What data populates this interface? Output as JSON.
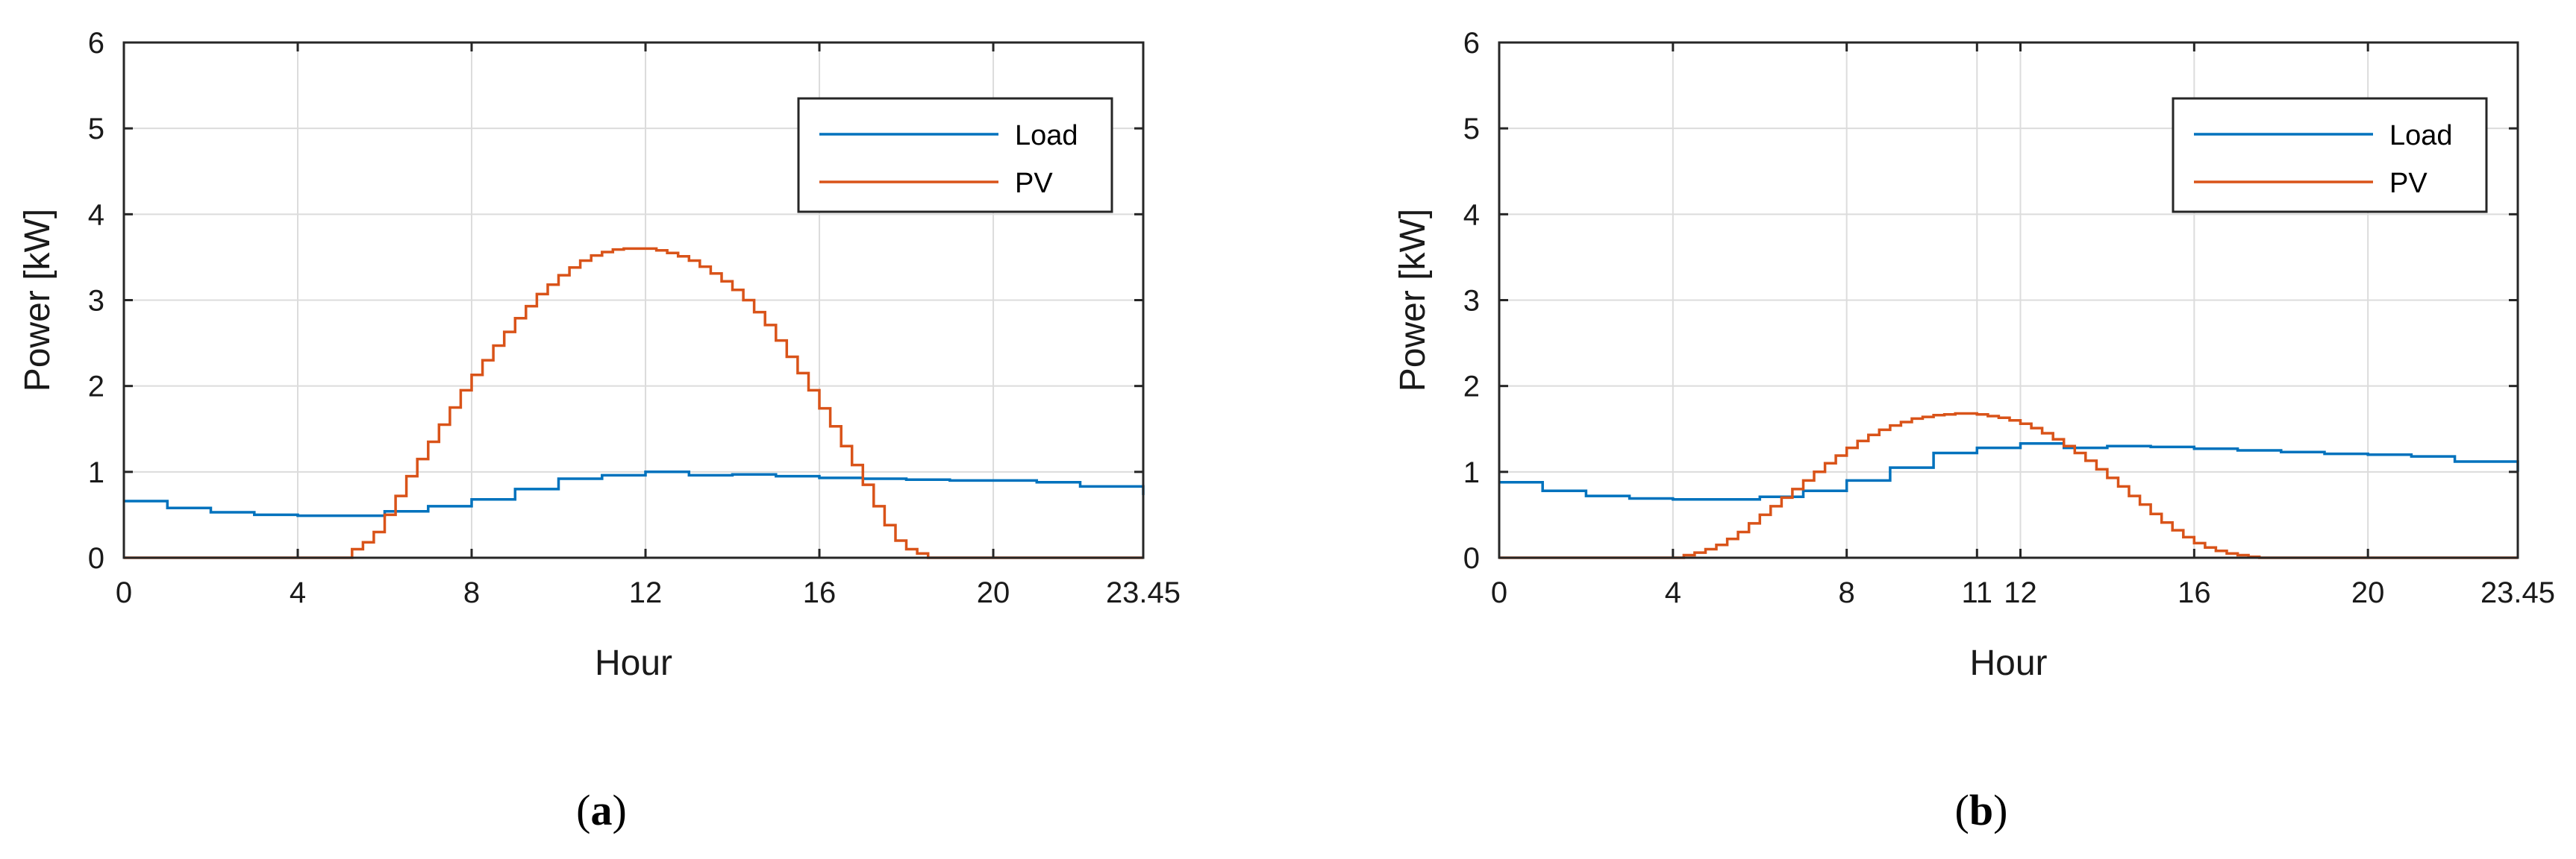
{
  "colors": {
    "load": "#0072BD",
    "pv": "#D95319",
    "grid": "#dcdcdc",
    "axis": "#262626"
  },
  "chart_data": [
    {
      "type": "line",
      "panel": "a",
      "caption": {
        "open": "(",
        "letter": "a",
        "close": ")"
      },
      "xlabel": "Hour",
      "ylabel": "Power [kW]",
      "xlim": [
        0,
        23.45
      ],
      "ylim": [
        0,
        6
      ],
      "xticks": [
        0,
        4,
        8,
        12,
        16,
        20,
        23.45
      ],
      "xtick_labels": [
        "0",
        "4",
        "8",
        "12",
        "16",
        "20",
        "23.45"
      ],
      "yticks": [
        0,
        1,
        2,
        3,
        4,
        5,
        6
      ],
      "ytick_labels": [
        "0",
        "1",
        "2",
        "3",
        "4",
        "5",
        "6"
      ],
      "grid": true,
      "legend": {
        "position": "top-right",
        "entries": [
          "Load",
          "PV"
        ]
      },
      "series": [
        {
          "name": "Load",
          "step": true,
          "x": [
            0,
            1,
            2,
            3,
            4,
            5,
            6,
            7,
            8,
            9,
            10,
            11,
            12,
            13,
            14,
            15,
            16,
            17,
            18,
            19,
            20,
            21,
            22,
            23.45
          ],
          "y": [
            0.66,
            0.58,
            0.53,
            0.5,
            0.49,
            0.49,
            0.54,
            0.6,
            0.68,
            0.8,
            0.92,
            0.96,
            1.0,
            0.96,
            0.97,
            0.95,
            0.93,
            0.92,
            0.91,
            0.9,
            0.9,
            0.88,
            0.83,
            0.73
          ]
        },
        {
          "name": "PV",
          "step": true,
          "x": [
            0,
            5.25,
            5.5,
            5.75,
            6,
            6.25,
            6.5,
            6.75,
            7,
            7.25,
            7.5,
            7.75,
            8,
            8.25,
            8.5,
            8.75,
            9,
            9.25,
            9.5,
            9.75,
            10,
            10.25,
            10.5,
            10.75,
            11,
            11.25,
            11.5,
            11.75,
            12,
            12.25,
            12.5,
            12.75,
            13,
            13.25,
            13.5,
            13.75,
            14,
            14.25,
            14.5,
            14.75,
            15,
            15.25,
            15.5,
            15.75,
            16,
            16.25,
            16.5,
            16.75,
            17,
            17.25,
            17.5,
            17.75,
            18,
            18.25,
            18.5,
            23.45
          ],
          "y": [
            0,
            0.1,
            0.18,
            0.3,
            0.5,
            0.72,
            0.95,
            1.15,
            1.35,
            1.55,
            1.75,
            1.95,
            2.13,
            2.3,
            2.47,
            2.63,
            2.79,
            2.93,
            3.07,
            3.18,
            3.29,
            3.38,
            3.46,
            3.52,
            3.56,
            3.59,
            3.6,
            3.6,
            3.6,
            3.58,
            3.55,
            3.51,
            3.46,
            3.39,
            3.31,
            3.22,
            3.12,
            3.0,
            2.86,
            2.71,
            2.53,
            2.34,
            2.15,
            1.95,
            1.74,
            1.53,
            1.3,
            1.08,
            0.85,
            0.6,
            0.38,
            0.2,
            0.1,
            0.05,
            0,
            0
          ]
        }
      ]
    },
    {
      "type": "line",
      "panel": "b",
      "caption": {
        "open": "(",
        "letter": "b",
        "close": ")"
      },
      "xlabel": "Hour",
      "ylabel": "Power [kW]",
      "xlim": [
        0,
        23.45
      ],
      "ylim": [
        0,
        6
      ],
      "xticks": [
        0,
        4,
        8,
        11,
        12,
        16,
        20,
        23.45
      ],
      "xtick_labels": [
        "0",
        "4",
        "8",
        "11",
        "12",
        "16",
        "20",
        "23.45"
      ],
      "yticks": [
        0,
        1,
        2,
        3,
        4,
        5,
        6
      ],
      "ytick_labels": [
        "0",
        "1",
        "2",
        "3",
        "4",
        "5",
        "6"
      ],
      "grid": true,
      "legend": {
        "position": "top-right",
        "entries": [
          "Load",
          "PV"
        ]
      },
      "series": [
        {
          "name": "Load",
          "step": true,
          "x": [
            0,
            1,
            2,
            3,
            4,
            5,
            6,
            7,
            8,
            9,
            10,
            11,
            12,
            13,
            14,
            15,
            16,
            17,
            18,
            19,
            20,
            21,
            22,
            23.45
          ],
          "y": [
            0.88,
            0.78,
            0.72,
            0.69,
            0.68,
            0.68,
            0.71,
            0.78,
            0.9,
            1.05,
            1.22,
            1.28,
            1.33,
            1.28,
            1.3,
            1.29,
            1.27,
            1.25,
            1.23,
            1.21,
            1.2,
            1.18,
            1.12,
            1.0
          ]
        },
        {
          "name": "PV",
          "step": true,
          "x": [
            0,
            4.25,
            4.5,
            4.75,
            5,
            5.25,
            5.5,
            5.75,
            6,
            6.25,
            6.5,
            6.75,
            7,
            7.25,
            7.5,
            7.75,
            8,
            8.25,
            8.5,
            8.75,
            9,
            9.25,
            9.5,
            9.75,
            10,
            10.25,
            10.5,
            10.75,
            11,
            11.25,
            11.5,
            11.75,
            12,
            12.25,
            12.5,
            12.75,
            13,
            13.25,
            13.5,
            13.75,
            14,
            14.25,
            14.5,
            14.75,
            15,
            15.25,
            15.5,
            15.75,
            16,
            16.25,
            16.5,
            16.75,
            17,
            17.25,
            17.5,
            23.45
          ],
          "y": [
            0,
            0.03,
            0.06,
            0.1,
            0.15,
            0.22,
            0.3,
            0.4,
            0.5,
            0.6,
            0.7,
            0.8,
            0.9,
            1.0,
            1.1,
            1.19,
            1.28,
            1.36,
            1.43,
            1.49,
            1.54,
            1.58,
            1.62,
            1.64,
            1.66,
            1.67,
            1.68,
            1.68,
            1.67,
            1.65,
            1.63,
            1.6,
            1.56,
            1.51,
            1.45,
            1.38,
            1.3,
            1.22,
            1.13,
            1.03,
            0.93,
            0.83,
            0.72,
            0.62,
            0.51,
            0.41,
            0.32,
            0.24,
            0.17,
            0.12,
            0.08,
            0.05,
            0.03,
            0.01,
            0,
            0
          ]
        }
      ]
    }
  ]
}
